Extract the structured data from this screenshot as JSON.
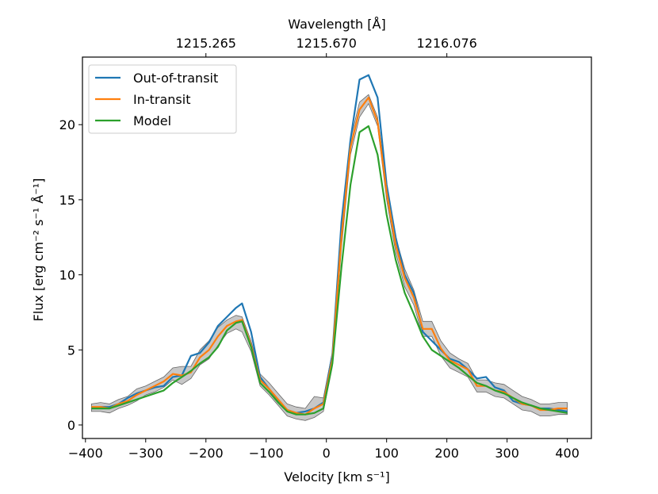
{
  "chart_data": {
    "type": "line",
    "xlabel": "Velocity [km s⁻¹]",
    "ylabel": "Flux [erg cm⁻² s⁻¹ Å⁻¹]",
    "top_xlabel": "Wavelength [Å]",
    "xlim": [
      -405,
      440
    ],
    "ylim": [
      -0.9,
      24.5
    ],
    "xticks": [
      -400,
      -300,
      -200,
      -100,
      0,
      100,
      200,
      300,
      400
    ],
    "xtick_labels": [
      "−400",
      "−300",
      "−200",
      "−100",
      "0",
      "100",
      "200",
      "300",
      "400"
    ],
    "yticks": [
      0,
      5,
      10,
      15,
      20
    ],
    "ytick_labels": [
      "0",
      "5",
      "10",
      "15",
      "20"
    ],
    "top_ticks": [
      -200,
      0,
      200
    ],
    "top_tick_labels": [
      "1215.265",
      "1215.670",
      "1216.076"
    ],
    "legend_position": "upper-left",
    "x": [
      -390,
      -375,
      -360,
      -345,
      -330,
      -315,
      -300,
      -285,
      -270,
      -255,
      -240,
      -225,
      -210,
      -195,
      -180,
      -165,
      -150,
      -140,
      -125,
      -110,
      -95,
      -80,
      -65,
      -50,
      -35,
      -20,
      -5,
      10,
      25,
      40,
      55,
      70,
      85,
      100,
      115,
      130,
      145,
      160,
      175,
      190,
      205,
      220,
      235,
      250,
      265,
      280,
      295,
      310,
      325,
      340,
      355,
      370,
      385,
      400
    ],
    "series": [
      {
        "name": "Out-of-transit",
        "color": "#1f77b4",
        "values": [
          1.1,
          1.2,
          1.2,
          1.4,
          1.8,
          2.1,
          2.3,
          2.5,
          2.6,
          3.2,
          3.3,
          4.6,
          4.8,
          5.5,
          6.6,
          7.2,
          7.8,
          8.1,
          6.2,
          3.2,
          2.4,
          1.6,
          1.0,
          0.8,
          0.9,
          1.1,
          1.5,
          4.7,
          13.5,
          19.0,
          23.0,
          23.3,
          21.8,
          16.0,
          12.5,
          10.0,
          8.8,
          6.2,
          5.6,
          5.0,
          4.4,
          4.2,
          3.7,
          3.1,
          3.2,
          2.5,
          2.3,
          1.6,
          1.4,
          1.3,
          1.1,
          1.1,
          1.0,
          0.9
        ]
      },
      {
        "name": "In-transit",
        "color": "#ff7f0e",
        "values": [
          1.2,
          1.2,
          1.1,
          1.4,
          1.6,
          2.0,
          2.3,
          2.6,
          2.9,
          3.4,
          3.3,
          3.5,
          4.5,
          5.0,
          5.9,
          6.6,
          6.9,
          7.0,
          5.3,
          3.0,
          2.4,
          1.7,
          1.0,
          0.8,
          0.7,
          1.1,
          1.4,
          4.4,
          12.5,
          18.5,
          21.0,
          21.8,
          20.2,
          15.5,
          12.0,
          9.8,
          8.5,
          6.4,
          6.4,
          5.1,
          4.3,
          4.0,
          3.7,
          2.6,
          2.6,
          2.3,
          2.2,
          1.8,
          1.4,
          1.3,
          1.0,
          1.0,
          1.1,
          1.1
        ]
      },
      {
        "name": "Model",
        "color": "#2ca02c",
        "values": [
          1.1,
          1.1,
          1.1,
          1.3,
          1.5,
          1.7,
          1.9,
          2.1,
          2.3,
          2.8,
          3.2,
          3.6,
          4.1,
          4.5,
          5.2,
          6.3,
          6.8,
          6.9,
          5.2,
          2.8,
          2.2,
          1.5,
          0.9,
          0.7,
          0.7,
          0.8,
          1.1,
          4.1,
          10.5,
          16.0,
          19.5,
          19.9,
          18.0,
          14.0,
          11.0,
          8.8,
          7.4,
          5.9,
          5.0,
          4.6,
          4.2,
          3.8,
          3.3,
          2.8,
          2.6,
          2.3,
          2.1,
          1.8,
          1.5,
          1.3,
          1.1,
          1.0,
          0.9,
          0.8
        ]
      }
    ],
    "uncertainty_band": {
      "color": "#999999",
      "upper": [
        1.4,
        1.5,
        1.4,
        1.7,
        1.9,
        2.4,
        2.6,
        2.9,
        3.2,
        3.8,
        3.9,
        3.9,
        5.0,
        5.6,
        6.5,
        7.0,
        7.3,
        7.2,
        5.6,
        3.4,
        2.8,
        2.1,
        1.4,
        1.2,
        1.1,
        1.9,
        1.8,
        4.9,
        13.2,
        19.0,
        21.5,
        22.0,
        20.5,
        16.0,
        12.5,
        10.4,
        9.0,
        6.9,
        6.9,
        5.6,
        4.8,
        4.4,
        4.1,
        3.0,
        3.0,
        2.8,
        2.7,
        2.3,
        1.9,
        1.7,
        1.4,
        1.4,
        1.5,
        1.5
      ],
      "lower": [
        0.9,
        0.9,
        0.8,
        1.1,
        1.3,
        1.6,
        2.0,
        2.2,
        2.5,
        3.0,
        2.7,
        3.1,
        4.0,
        4.4,
        5.3,
        6.1,
        6.4,
        6.2,
        4.9,
        2.6,
        2.0,
        1.3,
        0.6,
        0.4,
        0.3,
        0.5,
        0.9,
        3.9,
        11.8,
        18.0,
        20.5,
        21.4,
        19.9,
        15.0,
        11.5,
        9.2,
        8.0,
        5.9,
        5.9,
        4.6,
        3.8,
        3.5,
        3.2,
        2.2,
        2.2,
        1.9,
        1.8,
        1.4,
        1.0,
        0.9,
        0.6,
        0.6,
        0.7,
        0.7
      ]
    }
  }
}
